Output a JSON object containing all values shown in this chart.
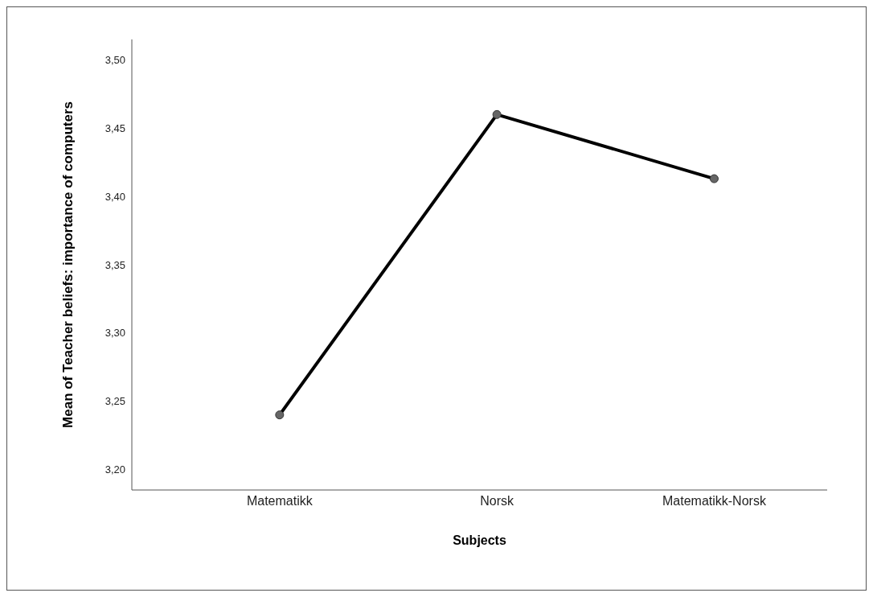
{
  "chart_data": {
    "type": "line",
    "xlabel": "Subjects",
    "ylabel": "Mean of Teacher beliefs: importance of computers",
    "categories": [
      "Matematikk",
      "Norsk",
      "Matematikk-Norsk"
    ],
    "series": [
      {
        "color": "#000000",
        "values": [
          3.24,
          3.46,
          3.413
        ]
      }
    ],
    "marker": "circle",
    "line_style": "solid",
    "grid": false,
    "legend": false,
    "ylim": [
      3.185,
      3.515
    ],
    "yticks": [
      {
        "value": 3.2,
        "label": "3,20"
      },
      {
        "value": 3.25,
        "label": "3,25"
      },
      {
        "value": 3.3,
        "label": "3,30"
      },
      {
        "value": 3.35,
        "label": "3,35"
      },
      {
        "value": 3.4,
        "label": "3,40"
      },
      {
        "value": 3.45,
        "label": "3,45"
      },
      {
        "value": 3.5,
        "label": "3,50"
      }
    ]
  }
}
